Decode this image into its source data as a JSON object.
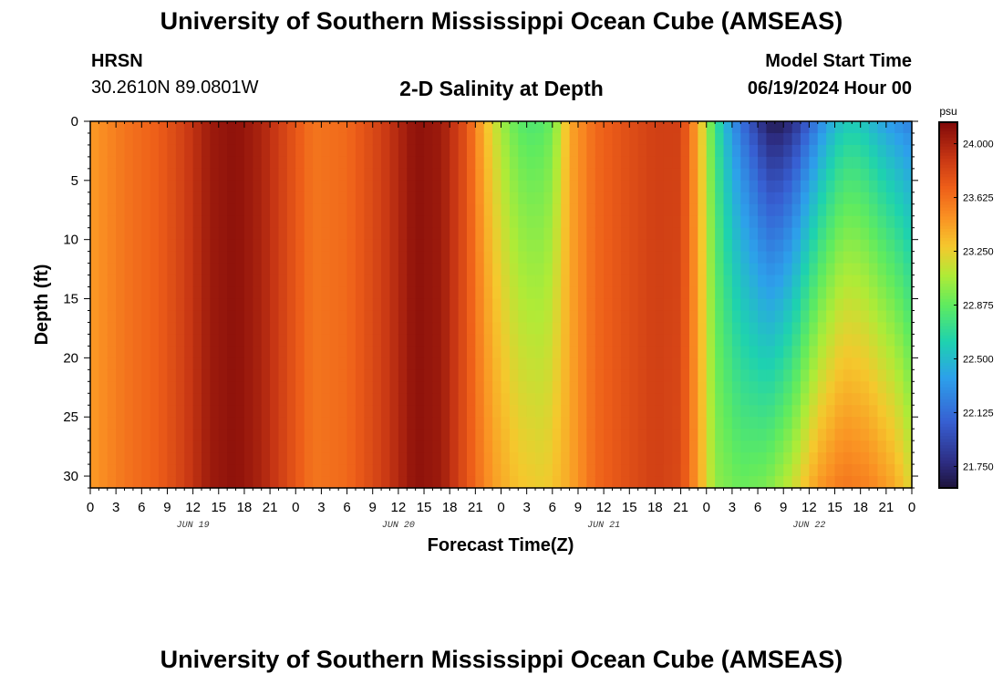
{
  "header": {
    "title": "University of Southern Mississippi Ocean Cube (AMSEAS)",
    "station": "HRSN",
    "coordinates": "30.2610N  89.0801W",
    "plot_title": "2-D Salinity at Depth",
    "model_start_label": "Model Start Time",
    "model_start_value": "06/19/2024 Hour 00"
  },
  "footer": {
    "title": "University of Southern Mississippi Ocean Cube (AMSEAS)"
  },
  "chart_data": {
    "type": "heatmap",
    "title": "2-D Salinity at Depth",
    "xlabel": "Forecast Time(Z)",
    "ylabel": "Depth (ft)",
    "x_hours_range": [
      0,
      96
    ],
    "y_range": [
      0,
      31
    ],
    "y_inverted": true,
    "x_tick_labels": [
      "0",
      "3",
      "6",
      "9",
      "12",
      "15",
      "18",
      "21",
      "0",
      "3",
      "6",
      "9",
      "12",
      "15",
      "18",
      "21",
      "0",
      "3",
      "6",
      "9",
      "12",
      "15",
      "18",
      "21",
      "0",
      "3",
      "6",
      "9",
      "12",
      "15",
      "18",
      "21",
      "0"
    ],
    "y_ticks": [
      0,
      5,
      10,
      15,
      20,
      25,
      30
    ],
    "date_labels": [
      {
        "label": "JUN 19",
        "hour": 12
      },
      {
        "label": "JUN 20",
        "hour": 36
      },
      {
        "label": "JUN 21",
        "hour": 60
      },
      {
        "label": "JUN 22",
        "hour": 84
      }
    ],
    "colorbar": {
      "unit": "psu",
      "range": [
        21.6,
        24.15
      ],
      "tick_labels": [
        "24.000",
        "23.625",
        "23.250",
        "22.875",
        "22.500",
        "22.125",
        "21.750"
      ],
      "tick_values": [
        24.0,
        23.625,
        23.25,
        22.875,
        22.5,
        22.125,
        21.75
      ]
    },
    "surface_salinity_psu": [
      {
        "hour": 0,
        "value": 23.45
      },
      {
        "hour": 4,
        "value": 23.6
      },
      {
        "hour": 8,
        "value": 23.7
      },
      {
        "hour": 11,
        "value": 23.85
      },
      {
        "hour": 14,
        "value": 24.05
      },
      {
        "hour": 17,
        "value": 24.1
      },
      {
        "hour": 20,
        "value": 24.0
      },
      {
        "hour": 23,
        "value": 23.8
      },
      {
        "hour": 26,
        "value": 23.6
      },
      {
        "hour": 30,
        "value": 23.65
      },
      {
        "hour": 34,
        "value": 23.85
      },
      {
        "hour": 38,
        "value": 24.1
      },
      {
        "hour": 41,
        "value": 24.05
      },
      {
        "hour": 44,
        "value": 23.75
      },
      {
        "hour": 46,
        "value": 23.35
      },
      {
        "hour": 48,
        "value": 23.05
      },
      {
        "hour": 50,
        "value": 22.85
      },
      {
        "hour": 52,
        "value": 22.8
      },
      {
        "hour": 54,
        "value": 22.9
      },
      {
        "hour": 56,
        "value": 23.4
      },
      {
        "hour": 59,
        "value": 23.65
      },
      {
        "hour": 62,
        "value": 23.75
      },
      {
        "hour": 66,
        "value": 23.85
      },
      {
        "hour": 69,
        "value": 23.85
      },
      {
        "hour": 71,
        "value": 23.4
      },
      {
        "hour": 73,
        "value": 22.75
      },
      {
        "hour": 75,
        "value": 22.3
      },
      {
        "hour": 77,
        "value": 22.0
      },
      {
        "hour": 79,
        "value": 21.7
      },
      {
        "hour": 80,
        "value": 21.62
      },
      {
        "hour": 82,
        "value": 21.75
      },
      {
        "hour": 84,
        "value": 22.05
      },
      {
        "hour": 86,
        "value": 22.35
      },
      {
        "hour": 88,
        "value": 22.55
      },
      {
        "hour": 90,
        "value": 22.55
      },
      {
        "hour": 93,
        "value": 22.35
      },
      {
        "hour": 96,
        "value": 22.2
      }
    ],
    "bottom_salinity_psu": [
      {
        "hour": 0,
        "value": 23.45
      },
      {
        "hour": 4,
        "value": 23.6
      },
      {
        "hour": 8,
        "value": 23.7
      },
      {
        "hour": 11,
        "value": 23.85
      },
      {
        "hour": 14,
        "value": 24.05
      },
      {
        "hour": 17,
        "value": 24.1
      },
      {
        "hour": 20,
        "value": 24.0
      },
      {
        "hour": 23,
        "value": 23.8
      },
      {
        "hour": 26,
        "value": 23.6
      },
      {
        "hour": 30,
        "value": 23.65
      },
      {
        "hour": 34,
        "value": 23.85
      },
      {
        "hour": 38,
        "value": 24.1
      },
      {
        "hour": 41,
        "value": 24.05
      },
      {
        "hour": 44,
        "value": 23.75
      },
      {
        "hour": 47,
        "value": 23.45
      },
      {
        "hour": 50,
        "value": 23.3
      },
      {
        "hour": 53,
        "value": 23.25
      },
      {
        "hour": 56,
        "value": 23.4
      },
      {
        "hour": 59,
        "value": 23.65
      },
      {
        "hour": 62,
        "value": 23.75
      },
      {
        "hour": 66,
        "value": 23.85
      },
      {
        "hour": 69,
        "value": 23.8
      },
      {
        "hour": 71,
        "value": 23.45
      },
      {
        "hour": 73,
        "value": 23.0
      },
      {
        "hour": 76,
        "value": 22.9
      },
      {
        "hour": 79,
        "value": 22.95
      },
      {
        "hour": 82,
        "value": 23.15
      },
      {
        "hour": 85,
        "value": 23.45
      },
      {
        "hour": 88,
        "value": 23.6
      },
      {
        "hour": 91,
        "value": 23.55
      },
      {
        "hour": 94,
        "value": 23.4
      },
      {
        "hour": 96,
        "value": 23.2
      }
    ]
  }
}
